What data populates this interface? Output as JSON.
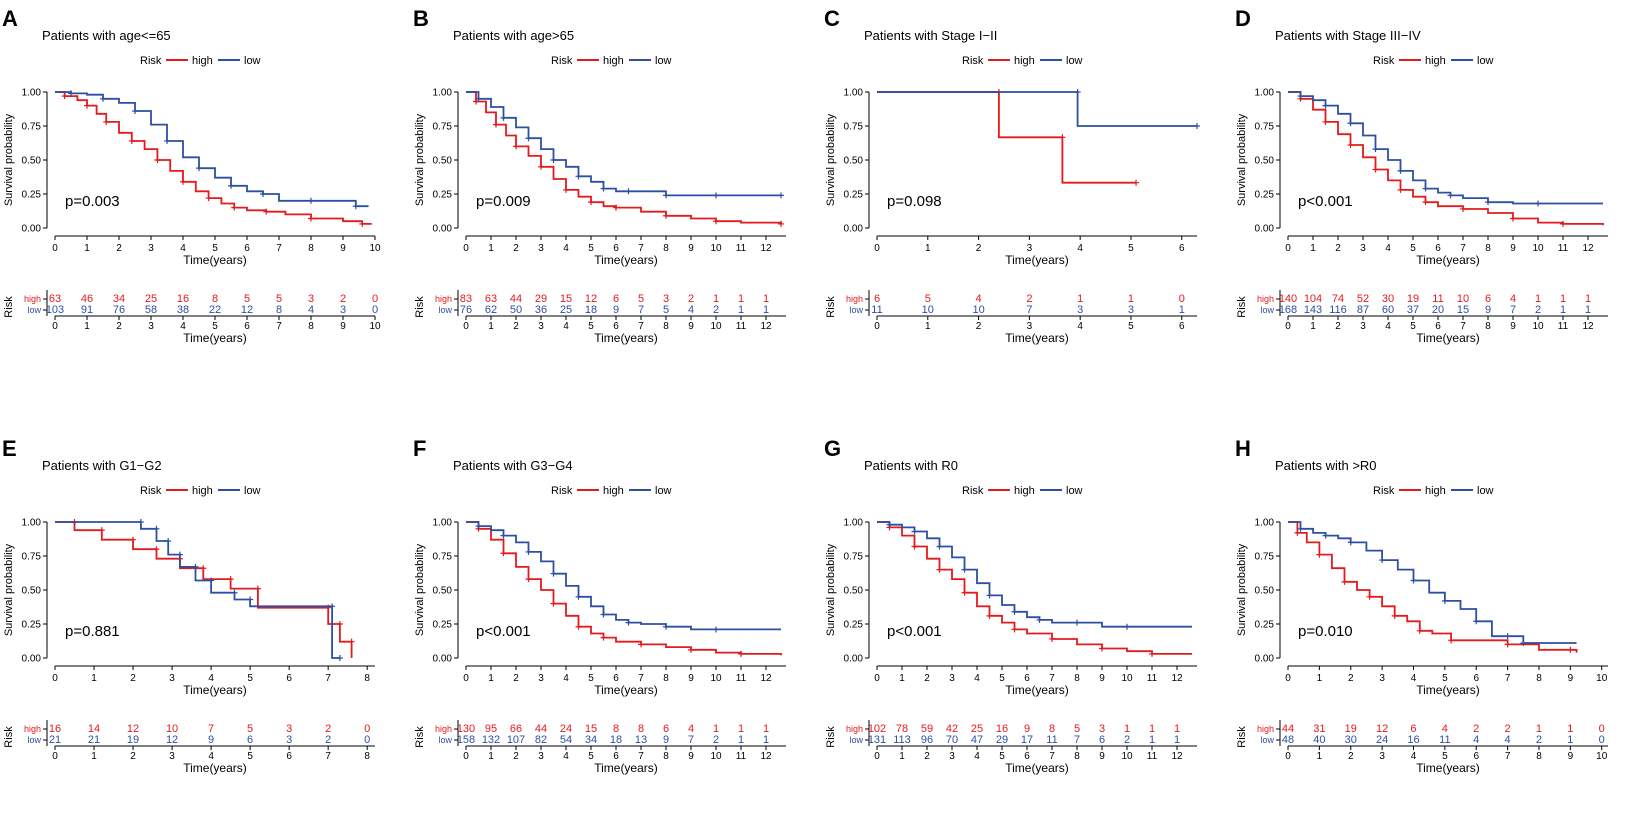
{
  "colors": {
    "high": "#e41a1c",
    "low": "#2d4fa3",
    "axis": "#000000"
  },
  "legend": {
    "title": "Risk",
    "high_label": "high",
    "low_label": "low"
  },
  "axis_labels": {
    "y": "Survival probability",
    "x": "Time(years)",
    "risk_table_y": "Risk"
  },
  "chart_data": [
    {
      "panel": "A",
      "type": "line",
      "title": "Patients with age<=65",
      "pvalue": "p=0.003",
      "xlim": [
        0,
        10
      ],
      "xticks": [
        0,
        1,
        2,
        3,
        4,
        5,
        6,
        7,
        8,
        9,
        10
      ],
      "ylim": [
        0,
        1
      ],
      "yticks": [
        "0.00",
        "0.25",
        "0.50",
        "0.75",
        "1.00"
      ],
      "series": [
        {
          "name": "high",
          "x": [
            0,
            0.3,
            0.7,
            1.0,
            1.3,
            1.6,
            2.0,
            2.4,
            2.8,
            3.2,
            3.6,
            4.0,
            4.4,
            4.8,
            5.2,
            5.6,
            6.0,
            6.6,
            7.2,
            8.0,
            9.0,
            9.6,
            9.9
          ],
          "y": [
            1.0,
            0.97,
            0.94,
            0.9,
            0.84,
            0.78,
            0.7,
            0.64,
            0.58,
            0.5,
            0.42,
            0.34,
            0.27,
            0.22,
            0.18,
            0.15,
            0.13,
            0.12,
            0.1,
            0.07,
            0.05,
            0.03,
            0.03
          ]
        },
        {
          "name": "low",
          "x": [
            0,
            0.5,
            1.0,
            1.5,
            2.0,
            2.5,
            3.0,
            3.5,
            4.0,
            4.5,
            5.0,
            5.5,
            6.0,
            6.5,
            7.0,
            8.0,
            8.8,
            9.4,
            9.8
          ],
          "y": [
            1.0,
            0.99,
            0.98,
            0.95,
            0.92,
            0.86,
            0.76,
            0.64,
            0.52,
            0.44,
            0.37,
            0.31,
            0.27,
            0.25,
            0.2,
            0.2,
            0.2,
            0.16,
            0.16
          ]
        }
      ],
      "risk_table": {
        "high": [
          "63",
          "46",
          "34",
          "25",
          "16",
          "8",
          "5",
          "5",
          "3",
          "2",
          "0"
        ],
        "low": [
          "103",
          "91",
          "76",
          "58",
          "38",
          "22",
          "12",
          "8",
          "4",
          "3",
          "0"
        ]
      }
    },
    {
      "panel": "B",
      "type": "line",
      "title": "Patients with age>65",
      "pvalue": "p=0.009",
      "xlim": [
        0,
        12.8
      ],
      "xticks": [
        0,
        1,
        2,
        3,
        4,
        5,
        6,
        7,
        8,
        9,
        10,
        11,
        12
      ],
      "ylim": [
        0,
        1
      ],
      "yticks": [
        "0.00",
        "0.25",
        "0.50",
        "0.75",
        "1.00"
      ],
      "series": [
        {
          "name": "high",
          "x": [
            0,
            0.4,
            0.8,
            1.2,
            1.6,
            2.0,
            2.5,
            3.0,
            3.5,
            4.0,
            4.5,
            5.0,
            5.5,
            6.0,
            7.0,
            8.0,
            9.0,
            10.0,
            11.0,
            12.6
          ],
          "y": [
            1.0,
            0.93,
            0.85,
            0.76,
            0.68,
            0.6,
            0.53,
            0.45,
            0.36,
            0.28,
            0.23,
            0.19,
            0.16,
            0.15,
            0.12,
            0.09,
            0.07,
            0.05,
            0.04,
            0.03
          ]
        },
        {
          "name": "low",
          "x": [
            0,
            0.5,
            1.0,
            1.5,
            2.0,
            2.5,
            3.0,
            3.5,
            4.0,
            4.5,
            5.0,
            5.5,
            6.0,
            6.5,
            7.0,
            8.0,
            9.0,
            10.0,
            11.0,
            12.6
          ],
          "y": [
            1.0,
            0.95,
            0.89,
            0.81,
            0.74,
            0.66,
            0.58,
            0.5,
            0.45,
            0.38,
            0.34,
            0.29,
            0.27,
            0.27,
            0.27,
            0.24,
            0.24,
            0.24,
            0.24,
            0.24
          ]
        }
      ],
      "risk_table": {
        "high": [
          "83",
          "63",
          "44",
          "29",
          "15",
          "12",
          "6",
          "5",
          "3",
          "2",
          "1",
          "1",
          "1"
        ],
        "low": [
          "76",
          "62",
          "50",
          "36",
          "25",
          "18",
          "9",
          "7",
          "5",
          "4",
          "2",
          "1",
          "1"
        ]
      }
    },
    {
      "panel": "C",
      "type": "line",
      "title": "Patients with Stage I−II",
      "pvalue": "p=0.098",
      "xlim": [
        0,
        6.3
      ],
      "xticks": [
        0,
        1,
        2,
        3,
        4,
        5,
        6
      ],
      "ylim": [
        0,
        1
      ],
      "yticks": [
        "0.00",
        "0.25",
        "0.50",
        "0.75",
        "1.00"
      ],
      "series": [
        {
          "name": "high",
          "x": [
            0,
            2.4,
            2.4,
            3.65,
            3.65,
            5.1
          ],
          "y": [
            1.0,
            1.0,
            0.667,
            0.667,
            0.333,
            0.333
          ]
        },
        {
          "name": "low",
          "x": [
            0,
            3.95,
            3.95,
            6.3
          ],
          "y": [
            1.0,
            1.0,
            0.75,
            0.75
          ]
        }
      ],
      "risk_table": {
        "high": [
          "6",
          "5",
          "4",
          "2",
          "1",
          "1",
          "0"
        ],
        "low": [
          "11",
          "10",
          "10",
          "7",
          "3",
          "3",
          "1"
        ]
      }
    },
    {
      "panel": "D",
      "type": "line",
      "title": "Patients with Stage III−IV",
      "pvalue": "p<0.001",
      "xlim": [
        0,
        12.8
      ],
      "xticks": [
        0,
        1,
        2,
        3,
        4,
        5,
        6,
        7,
        8,
        9,
        10,
        11,
        12
      ],
      "ylim": [
        0,
        1
      ],
      "yticks": [
        "0.00",
        "0.25",
        "0.50",
        "0.75",
        "1.00"
      ],
      "series": [
        {
          "name": "high",
          "x": [
            0,
            0.5,
            1.0,
            1.5,
            2.0,
            2.5,
            3.0,
            3.5,
            4.0,
            4.5,
            5.0,
            5.5,
            6.0,
            7.0,
            8.0,
            9.0,
            10.0,
            11.0,
            12.6
          ],
          "y": [
            1.0,
            0.95,
            0.87,
            0.78,
            0.69,
            0.61,
            0.52,
            0.43,
            0.35,
            0.28,
            0.23,
            0.19,
            0.16,
            0.14,
            0.11,
            0.07,
            0.04,
            0.03,
            0.02
          ]
        },
        {
          "name": "low",
          "x": [
            0,
            0.5,
            1.0,
            1.5,
            2.0,
            2.5,
            3.0,
            3.5,
            4.0,
            4.5,
            5.0,
            5.5,
            6.0,
            6.5,
            7.0,
            8.0,
            9.0,
            10.0,
            12.6
          ],
          "y": [
            1.0,
            0.97,
            0.94,
            0.9,
            0.84,
            0.77,
            0.68,
            0.58,
            0.5,
            0.42,
            0.35,
            0.29,
            0.26,
            0.24,
            0.22,
            0.19,
            0.18,
            0.18,
            0.18
          ]
        }
      ],
      "risk_table": {
        "high": [
          "140",
          "104",
          "74",
          "52",
          "30",
          "19",
          "11",
          "10",
          "6",
          "4",
          "1",
          "1",
          "1"
        ],
        "low": [
          "168",
          "143",
          "116",
          "87",
          "60",
          "37",
          "20",
          "15",
          "9",
          "7",
          "2",
          "1",
          "1"
        ]
      }
    },
    {
      "panel": "E",
      "type": "line",
      "title": "Patients with G1−G2",
      "pvalue": "p=0.881",
      "xlim": [
        0,
        8.2
      ],
      "xticks": [
        0,
        1,
        2,
        3,
        4,
        5,
        6,
        7,
        8
      ],
      "ylim": [
        0,
        1
      ],
      "yticks": [
        "0.00",
        "0.25",
        "0.50",
        "0.75",
        "1.00"
      ],
      "series": [
        {
          "name": "high",
          "x": [
            0,
            0.5,
            0.5,
            1.2,
            1.2,
            2.0,
            2.0,
            2.6,
            2.6,
            3.2,
            3.2,
            3.8,
            3.8,
            4.5,
            4.5,
            5.2,
            5.2,
            7.0,
            7.0,
            7.3,
            7.3,
            7.6,
            7.6
          ],
          "y": [
            1.0,
            1.0,
            0.94,
            0.94,
            0.87,
            0.87,
            0.8,
            0.8,
            0.73,
            0.73,
            0.66,
            0.66,
            0.58,
            0.58,
            0.51,
            0.51,
            0.37,
            0.37,
            0.25,
            0.25,
            0.12,
            0.12,
            0.0
          ]
        },
        {
          "name": "low",
          "x": [
            0,
            2.2,
            2.2,
            2.6,
            2.6,
            2.9,
            2.9,
            3.2,
            3.2,
            3.6,
            3.6,
            4.0,
            4.0,
            4.6,
            4.6,
            5.0,
            5.0,
            7.1,
            7.1,
            7.3
          ],
          "y": [
            1.0,
            1.0,
            0.95,
            0.95,
            0.86,
            0.86,
            0.76,
            0.76,
            0.67,
            0.67,
            0.57,
            0.57,
            0.48,
            0.48,
            0.43,
            0.43,
            0.38,
            0.38,
            0.0,
            0.0
          ]
        }
      ],
      "risk_table": {
        "high": [
          "16",
          "14",
          "12",
          "10",
          "7",
          "5",
          "3",
          "2",
          "0"
        ],
        "low": [
          "21",
          "21",
          "19",
          "12",
          "9",
          "6",
          "3",
          "2",
          "0"
        ]
      }
    },
    {
      "panel": "F",
      "type": "line",
      "title": "Patients with G3−G4",
      "pvalue": "p<0.001",
      "xlim": [
        0,
        12.8
      ],
      "xticks": [
        0,
        1,
        2,
        3,
        4,
        5,
        6,
        7,
        8,
        9,
        10,
        11,
        12
      ],
      "ylim": [
        0,
        1
      ],
      "yticks": [
        "0.00",
        "0.25",
        "0.50",
        "0.75",
        "1.00"
      ],
      "series": [
        {
          "name": "high",
          "x": [
            0,
            0.5,
            1.0,
            1.5,
            2.0,
            2.5,
            3.0,
            3.5,
            4.0,
            4.5,
            5.0,
            5.5,
            6.0,
            7.0,
            8.0,
            9.0,
            10.0,
            11.0,
            12.6
          ],
          "y": [
            1.0,
            0.95,
            0.87,
            0.77,
            0.67,
            0.58,
            0.5,
            0.4,
            0.31,
            0.23,
            0.18,
            0.15,
            0.12,
            0.1,
            0.08,
            0.06,
            0.04,
            0.03,
            0.02
          ]
        },
        {
          "name": "low",
          "x": [
            0,
            0.5,
            1.0,
            1.5,
            2.0,
            2.5,
            3.0,
            3.5,
            4.0,
            4.5,
            5.0,
            5.5,
            6.0,
            6.5,
            7.0,
            8.0,
            9.0,
            10.0,
            12.6
          ],
          "y": [
            1.0,
            0.97,
            0.94,
            0.9,
            0.85,
            0.78,
            0.71,
            0.62,
            0.53,
            0.45,
            0.38,
            0.32,
            0.28,
            0.26,
            0.25,
            0.23,
            0.21,
            0.21,
            0.21
          ]
        }
      ],
      "risk_table": {
        "high": [
          "130",
          "95",
          "66",
          "44",
          "24",
          "15",
          "8",
          "8",
          "6",
          "4",
          "1",
          "1",
          "1"
        ],
        "low": [
          "158",
          "132",
          "107",
          "82",
          "54",
          "34",
          "18",
          "13",
          "9",
          "7",
          "2",
          "1",
          "1"
        ]
      }
    },
    {
      "panel": "G",
      "type": "line",
      "title": "Patients with R0",
      "pvalue": "p<0.001",
      "xlim": [
        0,
        12.8
      ],
      "xticks": [
        0,
        1,
        2,
        3,
        4,
        5,
        6,
        7,
        8,
        9,
        10,
        11,
        12
      ],
      "ylim": [
        0,
        1
      ],
      "yticks": [
        "0.00",
        "0.25",
        "0.50",
        "0.75",
        "1.00"
      ],
      "series": [
        {
          "name": "high",
          "x": [
            0,
            0.5,
            1.0,
            1.5,
            2.0,
            2.5,
            3.0,
            3.5,
            4.0,
            4.5,
            5.0,
            5.5,
            6.0,
            7.0,
            8.0,
            9.0,
            10.0,
            11.0,
            12.6
          ],
          "y": [
            1.0,
            0.96,
            0.9,
            0.82,
            0.73,
            0.65,
            0.58,
            0.48,
            0.38,
            0.31,
            0.26,
            0.21,
            0.18,
            0.14,
            0.1,
            0.07,
            0.05,
            0.03,
            0.03
          ]
        },
        {
          "name": "low",
          "x": [
            0,
            0.5,
            1.0,
            1.5,
            2.0,
            2.5,
            3.0,
            3.5,
            4.0,
            4.5,
            5.0,
            5.5,
            6.0,
            6.5,
            7.0,
            8.0,
            9.0,
            10.0,
            12.6
          ],
          "y": [
            1.0,
            0.98,
            0.96,
            0.93,
            0.88,
            0.82,
            0.74,
            0.65,
            0.55,
            0.46,
            0.39,
            0.34,
            0.3,
            0.28,
            0.26,
            0.26,
            0.23,
            0.23,
            0.23
          ]
        }
      ],
      "risk_table": {
        "high": [
          "102",
          "78",
          "59",
          "42",
          "25",
          "16",
          "9",
          "8",
          "5",
          "3",
          "1",
          "1",
          "1"
        ],
        "low": [
          "131",
          "113",
          "96",
          "70",
          "47",
          "29",
          "17",
          "11",
          "7",
          "6",
          "2",
          "1",
          "1"
        ]
      }
    },
    {
      "panel": "H",
      "type": "line",
      "title": "Patients with >R0",
      "pvalue": "p=0.010",
      "xlim": [
        0,
        10.2
      ],
      "xticks": [
        0,
        1,
        2,
        3,
        4,
        5,
        6,
        7,
        8,
        9,
        10
      ],
      "ylim": [
        0,
        1
      ],
      "yticks": [
        "0.00",
        "0.25",
        "0.50",
        "0.75",
        "1.00"
      ],
      "series": [
        {
          "name": "high",
          "x": [
            0,
            0.3,
            0.6,
            1.0,
            1.4,
            1.8,
            2.2,
            2.6,
            3.0,
            3.4,
            3.8,
            4.2,
            4.6,
            5.2,
            6.0,
            7.0,
            8.0,
            9.0,
            9.2
          ],
          "y": [
            1.0,
            0.92,
            0.85,
            0.76,
            0.66,
            0.56,
            0.5,
            0.45,
            0.38,
            0.31,
            0.27,
            0.2,
            0.18,
            0.13,
            0.13,
            0.1,
            0.06,
            0.06,
            0.04
          ]
        },
        {
          "name": "low",
          "x": [
            0,
            0.4,
            0.8,
            1.2,
            1.6,
            2.0,
            2.5,
            3.0,
            3.5,
            4.0,
            4.5,
            5.0,
            5.5,
            6.0,
            6.5,
            7.0,
            7.2,
            7.5,
            9.2
          ],
          "y": [
            1.0,
            0.95,
            0.92,
            0.9,
            0.88,
            0.85,
            0.79,
            0.72,
            0.65,
            0.57,
            0.48,
            0.42,
            0.36,
            0.27,
            0.16,
            0.16,
            0.16,
            0.11,
            0.11
          ]
        }
      ],
      "risk_table": {
        "high": [
          "44",
          "31",
          "19",
          "12",
          "6",
          "4",
          "2",
          "2",
          "1",
          "1",
          "0"
        ],
        "low": [
          "48",
          "40",
          "30",
          "24",
          "16",
          "11",
          "4",
          "4",
          "2",
          "1",
          "0"
        ]
      }
    }
  ]
}
